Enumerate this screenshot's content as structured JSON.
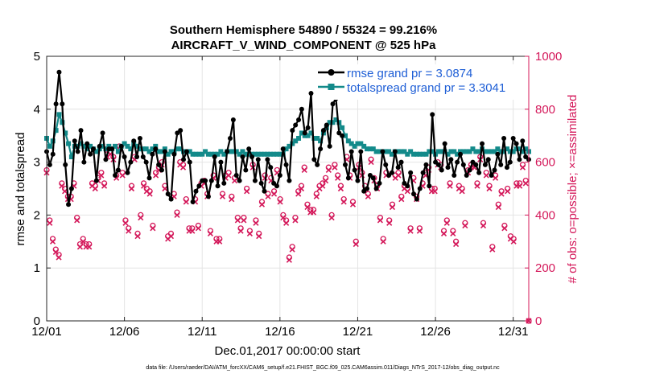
{
  "chart_data": {
    "type": "line",
    "title": "Southern Hemisphere 54890 / 55324 = 99.216%",
    "subtitle": "AIRCRAFT_V_WIND_COMPONENT @ 525 hPa",
    "xlabel": "Dec.01,2017 00:00:00 start",
    "ylabel_left": "rmse and totalspread",
    "ylabel_right": "# of obs: o=possible; ×=assimilated",
    "footer": "data file: /Users/raeder/DAI/ATM_forcXX/CAM6_setup/f.e21.FHIST_BGC.f09_025.CAM6assim.011/Diags_NTrS_2017-12/obs_diag_output.nc",
    "xlim": [
      0,
      31
    ],
    "ylim_left": [
      0,
      5
    ],
    "ylim_right": [
      0,
      1000
    ],
    "xticks": [
      0,
      5,
      10,
      15,
      20,
      25,
      30
    ],
    "xtick_labels": [
      "12/01",
      "12/06",
      "12/11",
      "12/16",
      "12/21",
      "12/26",
      "12/31"
    ],
    "yticks_left": [
      "0",
      "1",
      "2",
      "3",
      "4",
      "5"
    ],
    "yticks_right": [
      "0",
      "200",
      "400",
      "600",
      "800",
      "1000"
    ],
    "grid": true,
    "legend_position": "top-right",
    "legend": [
      "rmse grand pr = 3.0874",
      "totalspread grand pr = 3.3041"
    ],
    "colors": {
      "rmse": "#000000",
      "spread": "#138a8a",
      "obs": "#d4185a",
      "legend_text": "#1f5fd6",
      "right_axis": "#d4185a"
    },
    "series": [
      {
        "name": "rmse",
        "axis": "left",
        "values": [
          3.2,
          2.95,
          3.15,
          4.1,
          4.7,
          4.1,
          2.95,
          2.2,
          2.5,
          3.4,
          3.2,
          3.6,
          3.0,
          3.35,
          3.15,
          3.25,
          2.65,
          3.3,
          3.55,
          3.05,
          3.25,
          3.25,
          2.75,
          2.85,
          3.3,
          3.1,
          2.8,
          3.0,
          3.4,
          3.1,
          3.45,
          3.1,
          3.0,
          2.7,
          3.15,
          3.25,
          2.95,
          2.85,
          3.2,
          2.4,
          2.3,
          3.15,
          3.55,
          3.6,
          3.05,
          3.2,
          3.0,
          2.25,
          2.45,
          2.55,
          2.65,
          2.65,
          2.35,
          2.65,
          3.1,
          2.55,
          3.0,
          2.6,
          3.2,
          3.45,
          3.8,
          2.75,
          2.65,
          3.1,
          2.85,
          3.25,
          3.1,
          2.65,
          3.05,
          2.6,
          2.45,
          3.05,
          2.9,
          2.6,
          2.55,
          2.75,
          3.25,
          2.95,
          2.65,
          3.6,
          3.7,
          3.8,
          4.0,
          3.55,
          3.65,
          4.3,
          3.05,
          2.95,
          3.25,
          3.6,
          3.7,
          3.3,
          4.1,
          4.2,
          3.55,
          3.5,
          2.95,
          2.7,
          3.2,
          2.85,
          2.65,
          3.2,
          2.45,
          2.5,
          2.75,
          2.7,
          2.5,
          2.6,
          3.2,
          2.95,
          2.75,
          2.8,
          3.2,
          2.9,
          3.0,
          2.6,
          2.55,
          2.8,
          2.4,
          2.3,
          2.5,
          2.8,
          2.95,
          2.55,
          3.9,
          3.0,
          2.95,
          2.85,
          3.35,
          2.9,
          3.05,
          2.75,
          3.0,
          3.15,
          2.95,
          2.75,
          2.85,
          3.0,
          2.95,
          2.8,
          3.35,
          2.95,
          3.05,
          2.75,
          2.85,
          3.15,
          2.95,
          3.45,
          2.9,
          3.0,
          3.45,
          3.35,
          3.05,
          3.4,
          3.1,
          3.05
        ]
      },
      {
        "name": "totalspread",
        "axis": "left",
        "values": [
          3.45,
          3.3,
          3.4,
          3.6,
          3.9,
          3.75,
          3.55,
          3.35,
          3.1,
          3.3,
          3.3,
          3.35,
          3.3,
          3.25,
          3.3,
          3.25,
          3.2,
          3.25,
          3.3,
          3.25,
          3.3,
          3.25,
          3.3,
          3.2,
          3.3,
          3.35,
          3.3,
          3.25,
          3.35,
          3.3,
          3.25,
          3.25,
          3.25,
          3.2,
          3.25,
          3.3,
          3.2,
          3.2,
          3.25,
          3.15,
          3.2,
          3.2,
          3.25,
          3.25,
          3.2,
          3.2,
          3.2,
          3.15,
          3.15,
          3.15,
          3.15,
          3.2,
          3.15,
          3.15,
          3.15,
          3.15,
          3.2,
          3.15,
          3.2,
          3.2,
          3.2,
          3.2,
          3.15,
          3.2,
          3.15,
          3.15,
          3.15,
          3.15,
          3.15,
          3.15,
          3.15,
          3.15,
          3.15,
          3.15,
          3.15,
          3.15,
          3.15,
          3.25,
          3.3,
          3.35,
          3.4,
          3.45,
          3.55,
          3.5,
          3.5,
          3.55,
          3.45,
          3.45,
          3.4,
          3.55,
          3.65,
          3.75,
          3.75,
          3.8,
          3.75,
          3.65,
          3.5,
          3.4,
          3.35,
          3.3,
          3.35,
          3.35,
          3.3,
          3.25,
          3.25,
          3.25,
          3.2,
          3.2,
          3.2,
          3.2,
          3.2,
          3.15,
          3.2,
          3.2,
          3.2,
          3.2,
          3.15,
          3.2,
          3.15,
          3.15,
          3.15,
          3.15,
          3.15,
          3.2,
          3.2,
          3.15,
          3.2,
          3.2,
          3.2,
          3.15,
          3.2,
          3.2,
          3.15,
          3.2,
          3.2,
          3.2,
          3.2,
          3.25,
          3.2,
          3.2,
          3.25,
          3.2,
          3.2,
          3.2,
          3.2,
          3.25,
          3.2,
          3.2,
          3.25,
          3.2,
          3.2,
          3.25,
          3.25,
          3.2,
          3.25,
          3.2
        ]
      },
      {
        "name": "obs_possible",
        "axis": "right",
        "values": [
          570,
          380,
          310,
          270,
          250,
          520,
          500,
          470,
          470,
          520,
          390,
          290,
          310,
          290,
          290,
          520,
          510,
          540,
          560,
          520,
          630,
          640,
          620,
          550,
          660,
          560,
          380,
          350,
          510,
          620,
          330,
          400,
          520,
          500,
          490,
          360,
          560,
          580,
          600,
          510,
          320,
          330,
          480,
          410,
          600,
          590,
          460,
          350,
          350,
          460,
          360,
          520,
          530,
          480,
          340,
          550,
          310,
          310,
          480,
          550,
          560,
          470,
          540,
          390,
          350,
          390,
          500,
          340,
          590,
          380,
          330,
          450,
          550,
          480,
          540,
          490,
          570,
          460,
          400,
          380,
          240,
          280,
          390,
          490,
          510,
          580,
          440,
          420,
          420,
          480,
          510,
          520,
          540,
          580,
          400,
          590,
          550,
          510,
          460,
          620,
          550,
          450,
          300,
          590,
          560,
          510,
          480,
          610,
          540,
          510,
          390,
          310,
          560,
          380,
          440,
          550,
          560,
          470,
          510,
          500,
          350,
          540,
          470,
          350,
          520,
          560,
          580,
          500,
          500,
          600,
          590,
          340,
          380,
          520,
          340,
          300,
          510,
          500,
          370,
          570,
          590,
          590,
          520,
          620,
          370,
          560,
          510,
          280,
          550,
          440,
          490,
          360,
          500,
          320,
          310,
          520,
          520,
          590,
          530,
          0
        ]
      },
      {
        "name": "obs_assimilated",
        "axis": "right",
        "values": [
          560,
          370,
          300,
          260,
          240,
          510,
          490,
          460,
          460,
          510,
          380,
          280,
          300,
          280,
          280,
          510,
          500,
          530,
          550,
          510,
          620,
          630,
          610,
          540,
          650,
          550,
          370,
          340,
          500,
          610,
          320,
          390,
          510,
          490,
          480,
          350,
          550,
          570,
          590,
          500,
          310,
          320,
          470,
          400,
          590,
          580,
          450,
          340,
          340,
          450,
          350,
          510,
          520,
          470,
          330,
          540,
          300,
          300,
          470,
          540,
          550,
          460,
          530,
          380,
          340,
          380,
          490,
          330,
          580,
          370,
          320,
          440,
          540,
          470,
          530,
          480,
          560,
          450,
          390,
          370,
          230,
          270,
          380,
          480,
          500,
          570,
          430,
          410,
          410,
          470,
          500,
          510,
          530,
          570,
          390,
          580,
          540,
          500,
          450,
          610,
          540,
          440,
          290,
          580,
          550,
          500,
          470,
          600,
          530,
          500,
          380,
          300,
          550,
          370,
          430,
          540,
          550,
          460,
          500,
          490,
          340,
          530,
          460,
          340,
          510,
          550,
          570,
          490,
          490,
          590,
          580,
          330,
          370,
          510,
          330,
          290,
          500,
          490,
          360,
          560,
          580,
          580,
          510,
          610,
          360,
          550,
          500,
          270,
          540,
          430,
          480,
          350,
          490,
          310,
          300,
          510,
          510,
          580,
          520,
          0
        ]
      }
    ]
  }
}
